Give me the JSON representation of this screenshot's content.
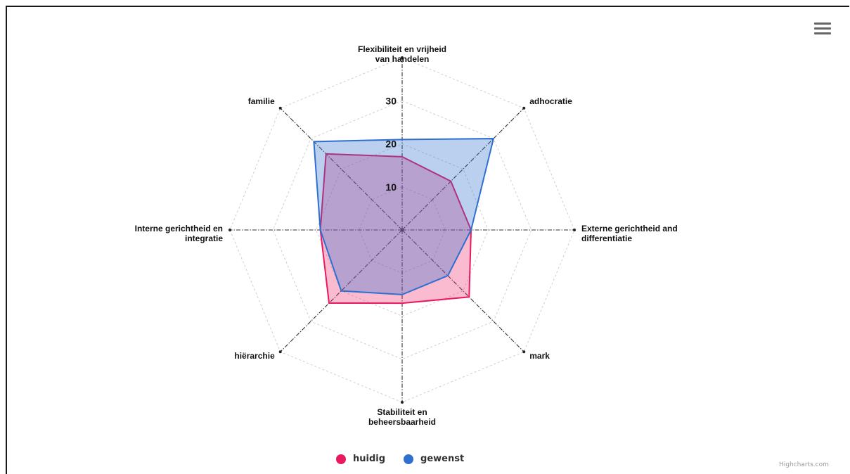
{
  "chart_data": {
    "type": "radar",
    "axes": [
      "Flexibiliteit en vrijheid van handelen",
      "adhocratie",
      "Externe gerichtheid and differentiatie",
      "mark",
      "Stabiliteit en beheersbaarheid",
      "hiërarchie",
      "Interne gerichtheid en integratie",
      "familie"
    ],
    "axis_label_lines": [
      [
        "Flexibiliteit en vrijheid",
        "van handelen"
      ],
      [
        "adhocratie"
      ],
      [
        "Externe gerichtheid and",
        "differentiatie"
      ],
      [
        "mark"
      ],
      [
        "Stabiliteit en",
        "beheersbaarheid"
      ],
      [
        "hiërarchie"
      ],
      [
        "Interne gerichtheid en",
        "integratie"
      ],
      [
        "familie"
      ]
    ],
    "radial_ticks": [
      10,
      20,
      30
    ],
    "ylim": [
      0,
      40
    ],
    "grid": true,
    "series": [
      {
        "name": "huidig",
        "color": "#e8195f",
        "values": [
          17,
          16,
          16,
          22,
          17,
          24,
          19,
          25
        ]
      },
      {
        "name": "gewenst",
        "color": "#2f6fd0",
        "values": [
          21,
          30,
          16,
          15,
          15,
          20,
          19,
          29
        ]
      }
    ],
    "legend_position": "bottom-center"
  },
  "credits": "Highcharts.com",
  "menu_icon": "hamburger-menu-icon"
}
